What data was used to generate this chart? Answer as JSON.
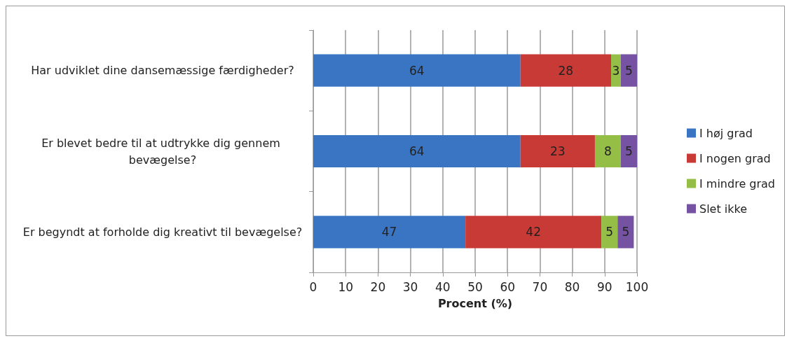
{
  "chart_data": {
    "type": "bar",
    "orientation": "horizontal",
    "stacked": true,
    "categories": [
      "Har udviklet dine dansemæssige færdigheder?",
      "Er blevet bedre til at udtrykke dig gennem bevægelse?",
      "Er begyndt at forholde dig kreativt til bevægelse?"
    ],
    "series": [
      {
        "name": "I høj grad",
        "color": "#3a75c4",
        "values": [
          64,
          64,
          47
        ]
      },
      {
        "name": "I nogen grad",
        "color": "#c83a36",
        "values": [
          28,
          23,
          42
        ]
      },
      {
        "name": "I mindre grad",
        "color": "#94be45",
        "values": [
          3,
          8,
          5
        ]
      },
      {
        "name": "Slet ikke",
        "color": "#7553a2",
        "values": [
          5,
          5,
          5
        ]
      }
    ],
    "xlabel": "Procent (%)",
    "xlim": [
      0,
      100
    ],
    "xticks": [
      0,
      10,
      20,
      30,
      40,
      50,
      60,
      70,
      80,
      90,
      100
    ],
    "grid": "x",
    "legend": "right",
    "data_labels": true
  }
}
